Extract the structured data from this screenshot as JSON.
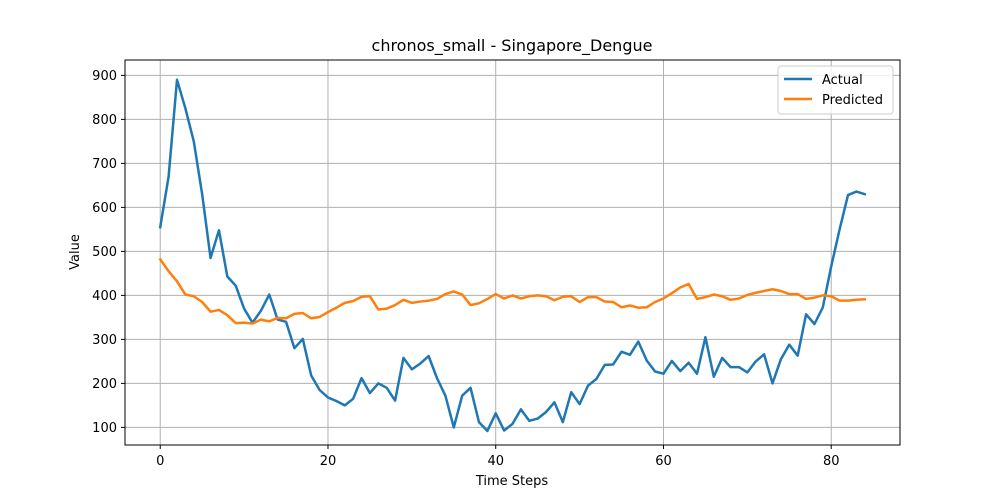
{
  "chart_data": {
    "type": "line",
    "title": "chronos_small - Singapore_Dengue",
    "xlabel": "Time Steps",
    "ylabel": "Value",
    "xlim": [
      -4.2,
      88.2
    ],
    "ylim": [
      60,
      935
    ],
    "xticks": [
      0,
      20,
      40,
      60,
      80
    ],
    "yticks": [
      100,
      200,
      300,
      400,
      500,
      600,
      700,
      800,
      900
    ],
    "grid": true,
    "legend_position": "top-right",
    "series": [
      {
        "name": "Actual",
        "color": "#1f77b4",
        "values": [
          555,
          670,
          890,
          825,
          750,
          630,
          485,
          548,
          443,
          422,
          370,
          338,
          365,
          402,
          345,
          340,
          280,
          301,
          218,
          185,
          168,
          160,
          150,
          165,
          212,
          178,
          200,
          190,
          161,
          258,
          232,
          245,
          262,
          212,
          172,
          100,
          172,
          190,
          112,
          92,
          132,
          93,
          108,
          141,
          115,
          120,
          135,
          157,
          112,
          180,
          153,
          195,
          210,
          242,
          243,
          272,
          265,
          295,
          252,
          227,
          222,
          251,
          228,
          247,
          222,
          305,
          215,
          258,
          237,
          237,
          225,
          250,
          266,
          200,
          255,
          288,
          263,
          357,
          335,
          373,
          466,
          550,
          628,
          636,
          630
        ]
      },
      {
        "name": "Predicted",
        "color": "#ff7f0e",
        "values": [
          482,
          455,
          432,
          402,
          398,
          385,
          363,
          367,
          355,
          337,
          338,
          336,
          345,
          341,
          349,
          348,
          358,
          360,
          348,
          351,
          362,
          372,
          383,
          387,
          397,
          398,
          368,
          370,
          378,
          390,
          383,
          386,
          388,
          392,
          403,
          409,
          402,
          378,
          382,
          392,
          403,
          393,
          400,
          393,
          398,
          400,
          398,
          389,
          397,
          398,
          385,
          396,
          396,
          386,
          385,
          373,
          377,
          372,
          373,
          385,
          393,
          405,
          418,
          426,
          392,
          396,
          402,
          398,
          390,
          393,
          401,
          406,
          410,
          414,
          410,
          403,
          403,
          392,
          395,
          400,
          398,
          388,
          388,
          390,
          391
        ]
      }
    ]
  }
}
